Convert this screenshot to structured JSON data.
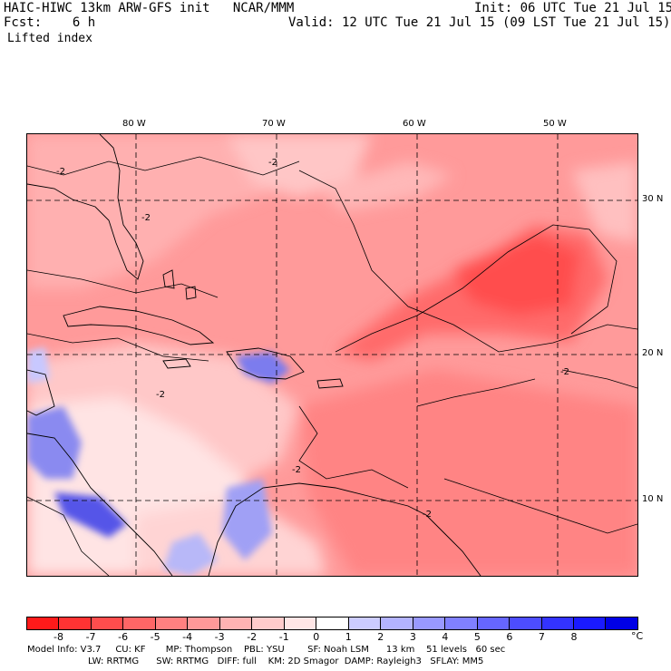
{
  "header": {
    "title": "HAIC-HIWC 13km ARW-GFS init   NCAR/MMM",
    "init": "Init: 06 UTC Tue 21 Jul 15",
    "fcst": "Fcst:    6 h",
    "valid": "Valid: 12 UTC Tue 21 Jul 15 (09 LST Tue 21 Jul 15)",
    "field": "Lifted index"
  },
  "map": {
    "lon_labels": [
      "80 W",
      "70 W",
      "60 W",
      "50 W"
    ],
    "lat_labels": [
      "30 N",
      "20 N",
      "10 N"
    ],
    "contour_labels": [
      "-2",
      "-2",
      "-2",
      "-2",
      "-2",
      "-2",
      "-2"
    ]
  },
  "colorbar": {
    "unit": "°C",
    "tick_labels": [
      "-8",
      "-7",
      "-6",
      "-5",
      "-4",
      "-3",
      "-2",
      "-1",
      "0",
      "1",
      "2",
      "3",
      "4",
      "5",
      "6",
      "7",
      "8"
    ],
    "colors": [
      "#ff1a1a",
      "#ff3333",
      "#ff4d4d",
      "#ff6666",
      "#ff8080",
      "#ff9999",
      "#ffb3b3",
      "#ffcccc",
      "#ffe6e6",
      "#ffffff",
      "#ccccff",
      "#b3b3ff",
      "#9999ff",
      "#8080ff",
      "#6666ff",
      "#4d4dff",
      "#3333ff",
      "#1a1aff",
      "#0000e6"
    ]
  },
  "footer": {
    "line1": "Model Info: V3.7     CU: KF       MP: Thompson    PBL: YSU        SF: Noah LSM      13 km    51 levels   60 sec",
    "line2": "LW: RRTMG      SW: RRTMG   DIFF: full    KM: 2D Smagor  DAMP: Rayleigh3   SFLAY: MM5"
  }
}
